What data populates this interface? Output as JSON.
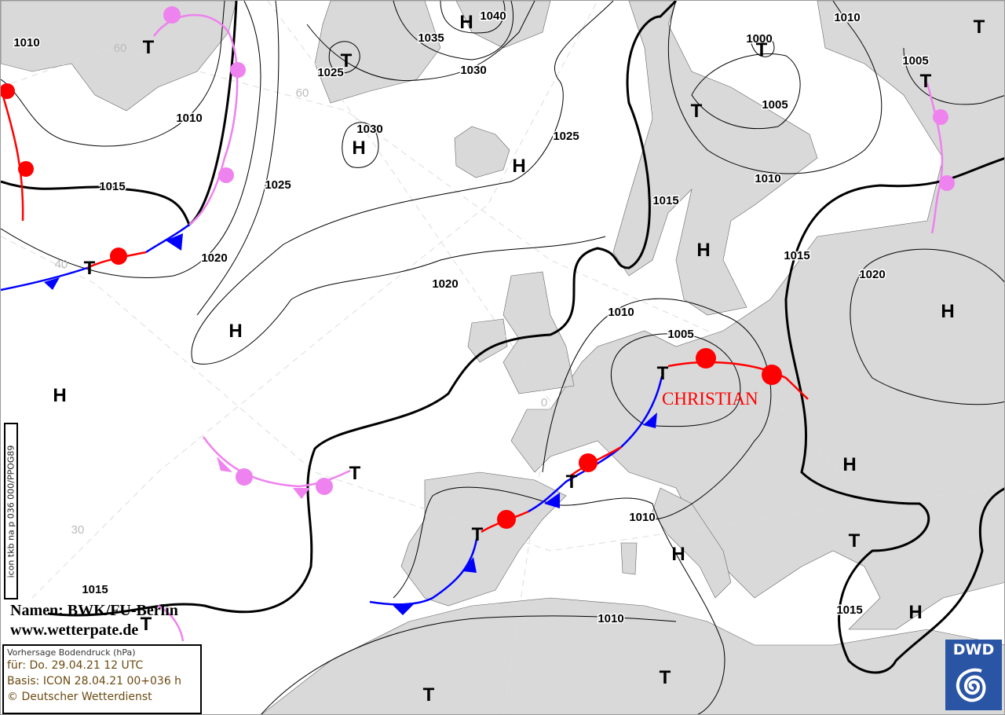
{
  "map": {
    "colors": {
      "land": "#d9d9d9",
      "sea": "#ffffff",
      "cold_front": "#0000ff",
      "warm_front": "#ff0000",
      "occlusion": "#ee82ee",
      "isobar": "#000000"
    },
    "isobar_labels": [
      "1010",
      "1010",
      "1015",
      "1025",
      "1020",
      "1035",
      "1040",
      "1025",
      "1030",
      "1030",
      "1025",
      "1020",
      "1015",
      "1000",
      "1005",
      "1010",
      "1010",
      "1005",
      "1015",
      "1020",
      "1010",
      "1005",
      "1010",
      "1010",
      "1015",
      "1015"
    ],
    "high_labels": [
      "H",
      "H",
      "H",
      "H",
      "H",
      "H",
      "H",
      "H",
      "H",
      "H"
    ],
    "low_labels": [
      "T",
      "T",
      "T",
      "T",
      "T",
      "T",
      "T",
      "T",
      "T",
      "T",
      "T",
      "T",
      "T",
      "T",
      "T"
    ],
    "grid_labels": [
      "60",
      "60",
      "40",
      "30",
      "0"
    ],
    "storm_name": "CHRISTIAN"
  },
  "credits": {
    "name_line": "Namen: BWK/FU-Berlin",
    "url_line": "www.wetterpate.de"
  },
  "infobox": {
    "title": "Vorhersage Bodendruck (hPa)",
    "valid": "für:  Do. 29.04.21  12 UTC",
    "basis": "Basis: ICON  28.04.21 00+036 h",
    "copyright": "© Deutscher Wetterdienst"
  },
  "product_code": "icon tkb na p 036 000/PPOG89",
  "logo": {
    "text": "DWD"
  }
}
